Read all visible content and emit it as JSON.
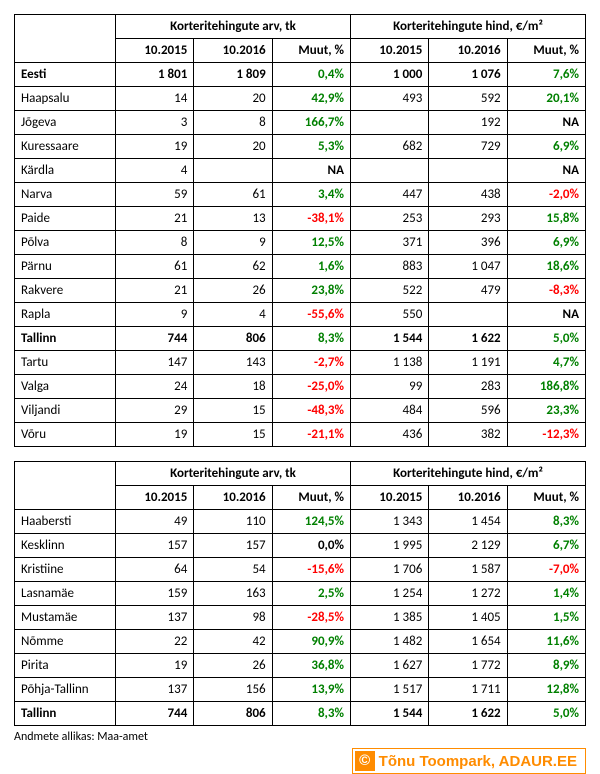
{
  "headers": {
    "group_count": "Korteritehingute arv, tk",
    "group_price": "Korteritehingute hind, €/m²",
    "col_2015": "10.2015",
    "col_2016": "10.2016",
    "col_change": "Muut, %"
  },
  "table1_rows": [
    {
      "label": "Eesti",
      "bold": true,
      "c15": "1 801",
      "c16": "1 809",
      "cch": "0,4%",
      "cchDir": "pos",
      "p15": "1 000",
      "p16": "1 076",
      "pch": "7,6%",
      "pchDir": "pos"
    },
    {
      "label": "Haapsalu",
      "c15": "14",
      "c16": "20",
      "cch": "42,9%",
      "cchDir": "pos",
      "p15": "493",
      "p16": "592",
      "pch": "20,1%",
      "pchDir": "pos"
    },
    {
      "label": "Jõgeva",
      "c15": "3",
      "c16": "8",
      "cch": "166,7%",
      "cchDir": "pos",
      "p15": "",
      "p16": "192",
      "pch": "NA",
      "pchDir": "zer"
    },
    {
      "label": "Kuressaare",
      "c15": "19",
      "c16": "20",
      "cch": "5,3%",
      "cchDir": "pos",
      "p15": "682",
      "p16": "729",
      "pch": "6,9%",
      "pchDir": "pos"
    },
    {
      "label": "Kärdla",
      "c15": "4",
      "c16": "",
      "cch": "NA",
      "cchDir": "zer",
      "p15": "",
      "p16": "",
      "pch": "NA",
      "pchDir": "zer"
    },
    {
      "label": "Narva",
      "c15": "59",
      "c16": "61",
      "cch": "3,4%",
      "cchDir": "pos",
      "p15": "447",
      "p16": "438",
      "pch": "-2,0%",
      "pchDir": "neg"
    },
    {
      "label": "Paide",
      "c15": "21",
      "c16": "13",
      "cch": "-38,1%",
      "cchDir": "neg",
      "p15": "253",
      "p16": "293",
      "pch": "15,8%",
      "pchDir": "pos"
    },
    {
      "label": "Põlva",
      "c15": "8",
      "c16": "9",
      "cch": "12,5%",
      "cchDir": "pos",
      "p15": "371",
      "p16": "396",
      "pch": "6,9%",
      "pchDir": "pos"
    },
    {
      "label": "Pärnu",
      "c15": "61",
      "c16": "62",
      "cch": "1,6%",
      "cchDir": "pos",
      "p15": "883",
      "p16": "1 047",
      "pch": "18,6%",
      "pchDir": "pos"
    },
    {
      "label": "Rakvere",
      "c15": "21",
      "c16": "26",
      "cch": "23,8%",
      "cchDir": "pos",
      "p15": "522",
      "p16": "479",
      "pch": "-8,3%",
      "pchDir": "neg"
    },
    {
      "label": "Rapla",
      "c15": "9",
      "c16": "4",
      "cch": "-55,6%",
      "cchDir": "neg",
      "p15": "550",
      "p16": "",
      "pch": "NA",
      "pchDir": "zer"
    },
    {
      "label": "Tallinn",
      "bold": true,
      "c15": "744",
      "c16": "806",
      "cch": "8,3%",
      "cchDir": "pos",
      "p15": "1 544",
      "p16": "1 622",
      "pch": "5,0%",
      "pchDir": "pos"
    },
    {
      "label": "Tartu",
      "c15": "147",
      "c16": "143",
      "cch": "-2,7%",
      "cchDir": "neg",
      "p15": "1 138",
      "p16": "1 191",
      "pch": "4,7%",
      "pchDir": "pos"
    },
    {
      "label": "Valga",
      "c15": "24",
      "c16": "18",
      "cch": "-25,0%",
      "cchDir": "neg",
      "p15": "99",
      "p16": "283",
      "pch": "186,8%",
      "pchDir": "pos"
    },
    {
      "label": "Viljandi",
      "c15": "29",
      "c16": "15",
      "cch": "-48,3%",
      "cchDir": "neg",
      "p15": "484",
      "p16": "596",
      "pch": "23,3%",
      "pchDir": "pos"
    },
    {
      "label": "Võru",
      "c15": "19",
      "c16": "15",
      "cch": "-21,1%",
      "cchDir": "neg",
      "p15": "436",
      "p16": "382",
      "pch": "-12,3%",
      "pchDir": "neg"
    }
  ],
  "table2_rows": [
    {
      "label": "Haabersti",
      "c15": "49",
      "c16": "110",
      "cch": "124,5%",
      "cchDir": "pos",
      "p15": "1 343",
      "p16": "1 454",
      "pch": "8,3%",
      "pchDir": "pos"
    },
    {
      "label": "Kesklinn",
      "c15": "157",
      "c16": "157",
      "cch": "0,0%",
      "cchDir": "zer",
      "p15": "1 995",
      "p16": "2 129",
      "pch": "6,7%",
      "pchDir": "pos"
    },
    {
      "label": "Kristiine",
      "c15": "64",
      "c16": "54",
      "cch": "-15,6%",
      "cchDir": "neg",
      "p15": "1 706",
      "p16": "1 587",
      "pch": "-7,0%",
      "pchDir": "neg"
    },
    {
      "label": "Lasnamäe",
      "c15": "159",
      "c16": "163",
      "cch": "2,5%",
      "cchDir": "pos",
      "p15": "1 254",
      "p16": "1 272",
      "pch": "1,4%",
      "pchDir": "pos"
    },
    {
      "label": "Mustamäe",
      "c15": "137",
      "c16": "98",
      "cch": "-28,5%",
      "cchDir": "neg",
      "p15": "1 385",
      "p16": "1 405",
      "pch": "1,5%",
      "pchDir": "pos"
    },
    {
      "label": "Nõmme",
      "c15": "22",
      "c16": "42",
      "cch": "90,9%",
      "cchDir": "pos",
      "p15": "1 482",
      "p16": "1 654",
      "pch": "11,6%",
      "pchDir": "pos"
    },
    {
      "label": "Pirita",
      "c15": "19",
      "c16": "26",
      "cch": "36,8%",
      "cchDir": "pos",
      "p15": "1 627",
      "p16": "1 772",
      "pch": "8,9%",
      "pchDir": "pos"
    },
    {
      "label": "Põhja-Tallinn",
      "c15": "137",
      "c16": "156",
      "cch": "13,9%",
      "cchDir": "pos",
      "p15": "1 517",
      "p16": "1 711",
      "pch": "12,8%",
      "pchDir": "pos"
    },
    {
      "label": "Tallinn",
      "bold": true,
      "c15": "744",
      "c16": "806",
      "cch": "8,3%",
      "cchDir": "pos",
      "p15": "1 544",
      "p16": "1 622",
      "pch": "5,0%",
      "pchDir": "pos"
    }
  ],
  "source_text": "Andmete allikas: Maa-amet",
  "credit_text": "Tõnu Toompark, ADAUR.EE",
  "colors": {
    "pos": "#008000",
    "neg": "#ff0000",
    "zer": "#000000",
    "credit": "#ff8c00"
  }
}
